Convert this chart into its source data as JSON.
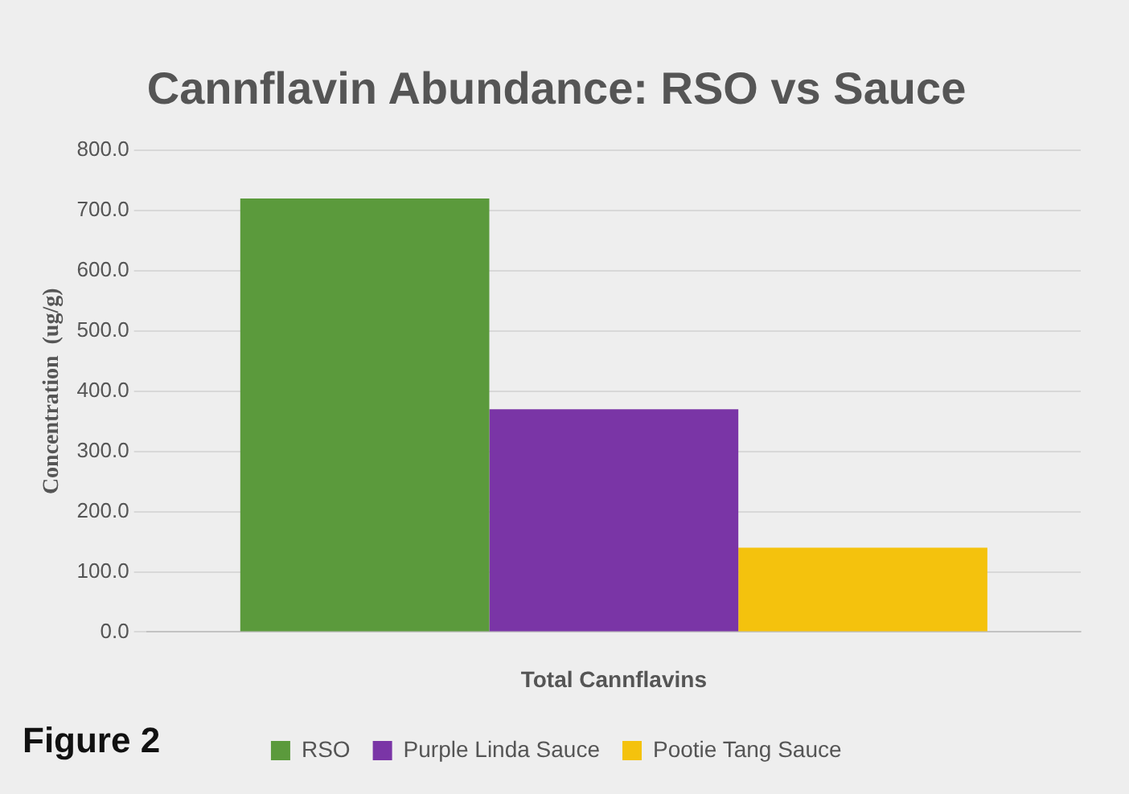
{
  "chart_data": {
    "type": "bar",
    "title": "Cannflavin Abundance: RSO vs Sauce",
    "ylabel": "Concentration  (ug/g)",
    "categories": [
      "Total Cannflavins"
    ],
    "series": [
      {
        "name": "RSO",
        "color": "#5b9a3c",
        "values": [
          720
        ]
      },
      {
        "name": "Purple Linda Sauce",
        "color": "#7a35a6",
        "values": [
          370
        ]
      },
      {
        "name": "Pootie Tang Sauce",
        "color": "#f4c20d",
        "values": [
          140
        ]
      }
    ],
    "ylim": [
      0,
      800
    ],
    "yticks": [
      {
        "value": 0,
        "label": "0.0"
      },
      {
        "value": 100,
        "label": "100.0"
      },
      {
        "value": 200,
        "label": "200.0"
      },
      {
        "value": 300,
        "label": "300.0"
      },
      {
        "value": 400,
        "label": "400.0"
      },
      {
        "value": 500,
        "label": "500.0"
      },
      {
        "value": 600,
        "label": "600.0"
      },
      {
        "value": 700,
        "label": "700.0"
      },
      {
        "value": 800,
        "label": "800.0"
      }
    ],
    "grid": "y",
    "legend": "bottom",
    "annotations": [
      "Figure 2"
    ]
  }
}
